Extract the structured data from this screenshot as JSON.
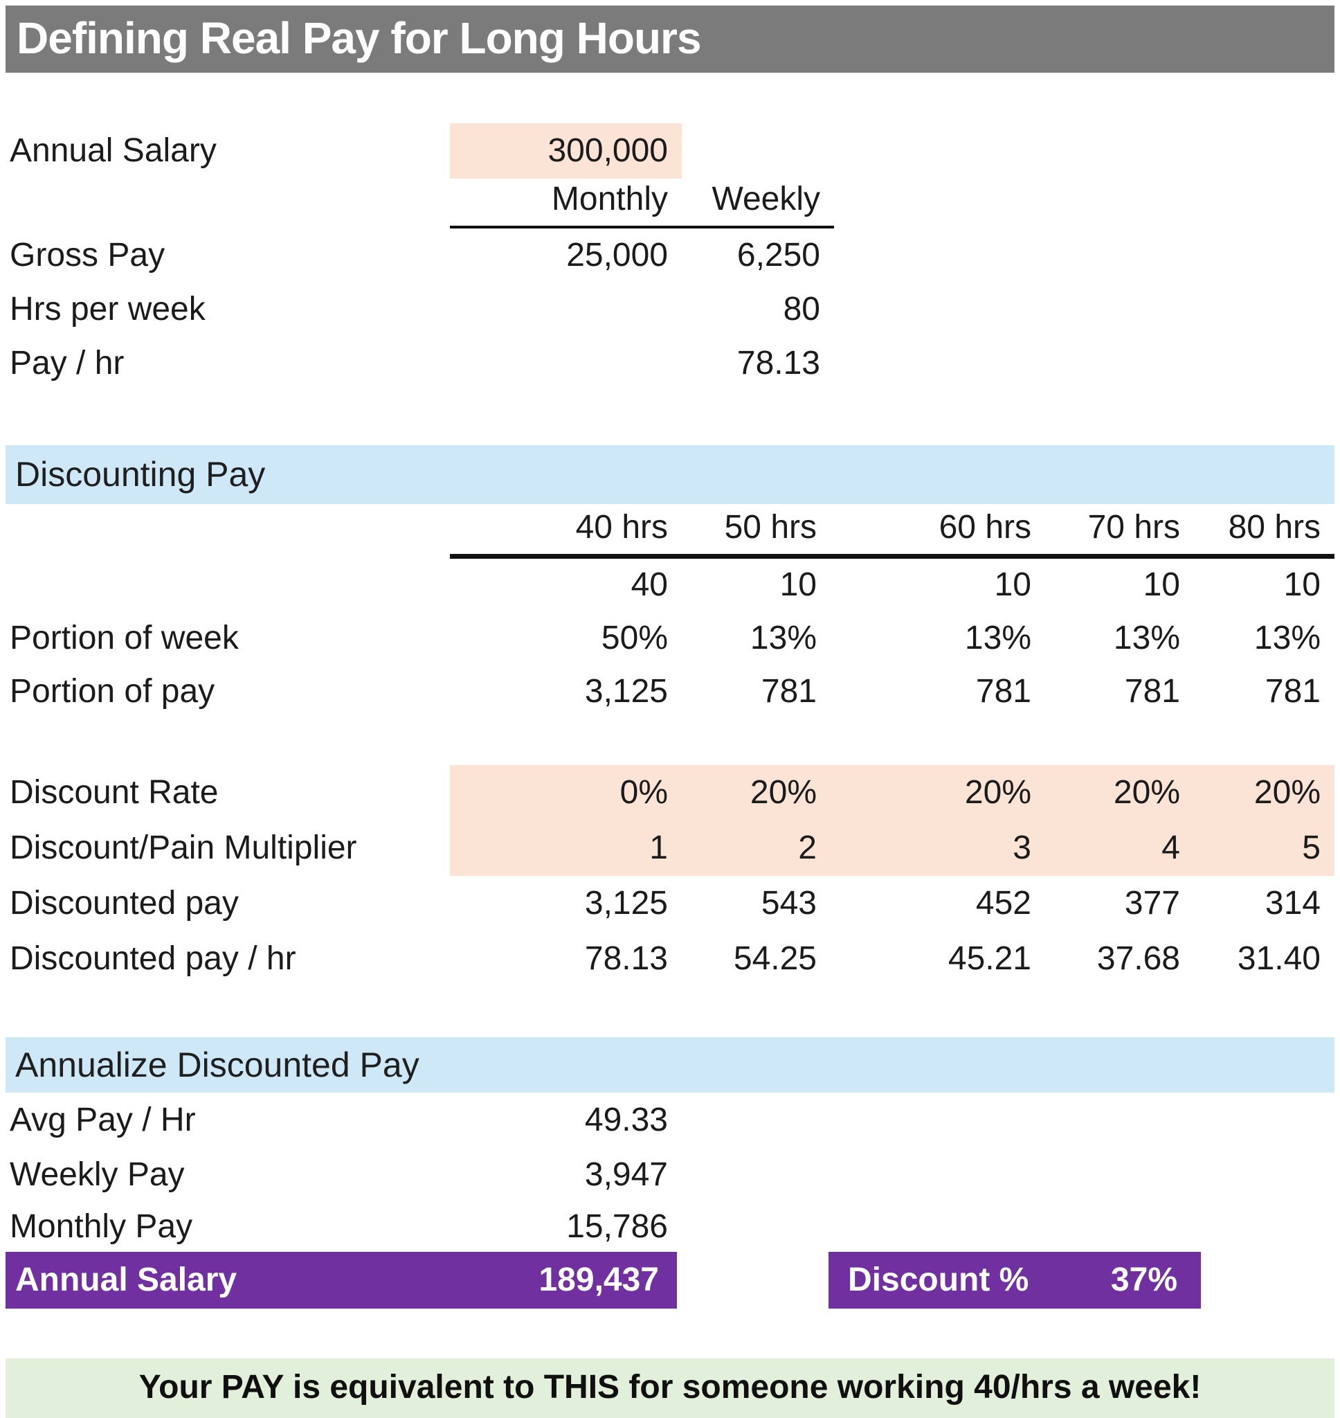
{
  "title": "Defining Real Pay for Long Hours",
  "colors": {
    "title_bar_bg": "#7b7b7b",
    "input_highlight": "#fbe3d6",
    "section_band_bg": "#cfe8f7",
    "result_bg": "#7030a0",
    "footer_bg": "#e2efda"
  },
  "top_table": {
    "annual_salary_label": "Annual Salary",
    "annual_salary_value": "300,000",
    "columns": {
      "monthly": "Monthly",
      "weekly": "Weekly"
    },
    "rows": [
      {
        "label": "Gross Pay",
        "monthly": "25,000",
        "weekly": "6,250"
      },
      {
        "label": "Hrs per week",
        "monthly": "",
        "weekly": "80"
      },
      {
        "label": "Pay / hr",
        "monthly": "",
        "weekly": "78.13"
      }
    ]
  },
  "discounting": {
    "section_title": "Discounting Pay",
    "columns": [
      "40 hrs",
      "50 hrs",
      "60 hrs",
      "70 hrs",
      "80 hrs"
    ],
    "hours_split": [
      "40",
      "10",
      "10",
      "10",
      "10"
    ],
    "rows": [
      {
        "label": "Portion of week",
        "values": [
          "50%",
          "13%",
          "13%",
          "13%",
          "13%"
        ]
      },
      {
        "label": "Portion of pay",
        "values": [
          "3,125",
          "781",
          "781",
          "781",
          "781"
        ]
      },
      {
        "label": "Discount Rate",
        "values": [
          "0%",
          "20%",
          "20%",
          "20%",
          "20%"
        ]
      },
      {
        "label": "Discount/Pain Multiplier",
        "values": [
          "1",
          "2",
          "3",
          "4",
          "5"
        ]
      },
      {
        "label": "Discounted pay",
        "values": [
          "3,125",
          "543",
          "452",
          "377",
          "314"
        ]
      },
      {
        "label": "Discounted pay / hr",
        "values": [
          "78.13",
          "54.25",
          "45.21",
          "37.68",
          "31.40"
        ]
      }
    ]
  },
  "annualize": {
    "section_title": "Annualize Discounted Pay",
    "rows": [
      {
        "label": "Avg Pay / Hr",
        "value": "49.33"
      },
      {
        "label": "Weekly Pay",
        "value": "3,947"
      },
      {
        "label": "Monthly Pay",
        "value": "15,786"
      }
    ],
    "annual_salary_label": "Annual Salary",
    "annual_salary_value": "189,437",
    "discount_label": "Discount %",
    "discount_value": "37%"
  },
  "footer": {
    "message": "Your PAY is equivalent to THIS for someone working 40/hrs a week!"
  }
}
